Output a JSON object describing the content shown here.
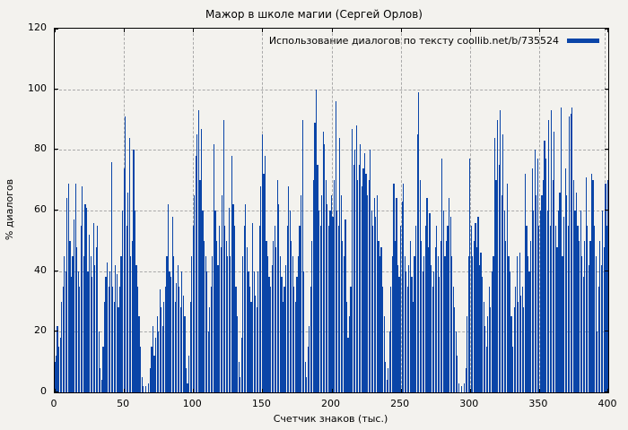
{
  "chart_data": {
    "type": "bar",
    "style": "impulses",
    "title": "Мажор в школе магии (Сергей Орлов)",
    "legend": {
      "label": "Использование диалогов по тексту coollib.net/b/735524",
      "position": "top-right"
    },
    "xlabel": "Счетчик знаков (тыс.)",
    "ylabel": "% диалогов",
    "xlim": [
      0,
      400
    ],
    "ylim": [
      0,
      120
    ],
    "x_ticks": [
      0,
      50,
      100,
      150,
      200,
      250,
      300,
      350,
      400
    ],
    "y_ticks": [
      0,
      20,
      40,
      60,
      80,
      100,
      120
    ],
    "grid": true,
    "colors": {
      "bar": "#0a45a8",
      "grid": "#a9a9a9",
      "border": "#000000",
      "background": "#f3f2ee",
      "text": "#000000"
    },
    "x_start": 0,
    "x_step": 1,
    "values": [
      10,
      12,
      22,
      15,
      18,
      30,
      35,
      45,
      40,
      64,
      69,
      50,
      38,
      45,
      57,
      69,
      48,
      40,
      35,
      55,
      68,
      45,
      62,
      61,
      40,
      52,
      45,
      38,
      56,
      42,
      48,
      55,
      20,
      8,
      4,
      15,
      30,
      38,
      43,
      35,
      40,
      76,
      35,
      30,
      42,
      39,
      28,
      35,
      45,
      60,
      74,
      91,
      55,
      66,
      84,
      45,
      50,
      80,
      60,
      42,
      35,
      25,
      15,
      5,
      2,
      0,
      2,
      0,
      3,
      8,
      15,
      22,
      12,
      18,
      25,
      20,
      34,
      28,
      22,
      30,
      35,
      45,
      62,
      40,
      38,
      58,
      45,
      30,
      36,
      42,
      35,
      28,
      40,
      32,
      25,
      8,
      3,
      12,
      30,
      45,
      55,
      65,
      78,
      85,
      93,
      70,
      87,
      60,
      50,
      45,
      40,
      20,
      28,
      35,
      45,
      82,
      60,
      50,
      42,
      55,
      48,
      65,
      90,
      55,
      50,
      45,
      61,
      45,
      78,
      62,
      55,
      35,
      25,
      10,
      5,
      18,
      45,
      55,
      62,
      48,
      40,
      35,
      30,
      56,
      40,
      32,
      28,
      40,
      55,
      68,
      85,
      72,
      78,
      50,
      45,
      38,
      35,
      42,
      50,
      55,
      48,
      70,
      62,
      45,
      38,
      30,
      35,
      42,
      55,
      68,
      60,
      50,
      45,
      35,
      30,
      38,
      45,
      55,
      65,
      90,
      40,
      10,
      5,
      15,
      22,
      35,
      50,
      70,
      89,
      100,
      75,
      60,
      55,
      65,
      86,
      82,
      70,
      62,
      55,
      60,
      65,
      58,
      70,
      96,
      60,
      55,
      84,
      65,
      50,
      45,
      57,
      30,
      18,
      25,
      35,
      87,
      75,
      80,
      88,
      70,
      75,
      82,
      68,
      74,
      79,
      72,
      65,
      70,
      80,
      60,
      55,
      64,
      58,
      65,
      50,
      45,
      48,
      35,
      25,
      10,
      4,
      8,
      20,
      35,
      45,
      69,
      50,
      64,
      42,
      38,
      55,
      63,
      69,
      45,
      40,
      35,
      42,
      50,
      38,
      30,
      45,
      55,
      85,
      99,
      70,
      50,
      40,
      45,
      55,
      64,
      48,
      59,
      42,
      35,
      40,
      48,
      55,
      45,
      38,
      50,
      77,
      60,
      45,
      50,
      55,
      64,
      58,
      45,
      35,
      28,
      20,
      12,
      3,
      0,
      2,
      0,
      3,
      8,
      25,
      45,
      77,
      55,
      45,
      50,
      56,
      48,
      58,
      42,
      46,
      38,
      30,
      22,
      15,
      25,
      35,
      28,
      40,
      45,
      84,
      70,
      90,
      75,
      93,
      65,
      85,
      60,
      50,
      69,
      45,
      40,
      25,
      15,
      28,
      35,
      45,
      30,
      46,
      32,
      35,
      28,
      72,
      55,
      45,
      40,
      50,
      74,
      60,
      80,
      65,
      77,
      55,
      60,
      65,
      70,
      83,
      77,
      60,
      90,
      55,
      93,
      70,
      86,
      55,
      48,
      60,
      66,
      94,
      45,
      58,
      74,
      65,
      55,
      91,
      92,
      94,
      70,
      60,
      66,
      55,
      50,
      60,
      45,
      38,
      50,
      71,
      55,
      42,
      50,
      72,
      70,
      55,
      45,
      20,
      35,
      50,
      42,
      60,
      48,
      69,
      55,
      70
    ]
  }
}
